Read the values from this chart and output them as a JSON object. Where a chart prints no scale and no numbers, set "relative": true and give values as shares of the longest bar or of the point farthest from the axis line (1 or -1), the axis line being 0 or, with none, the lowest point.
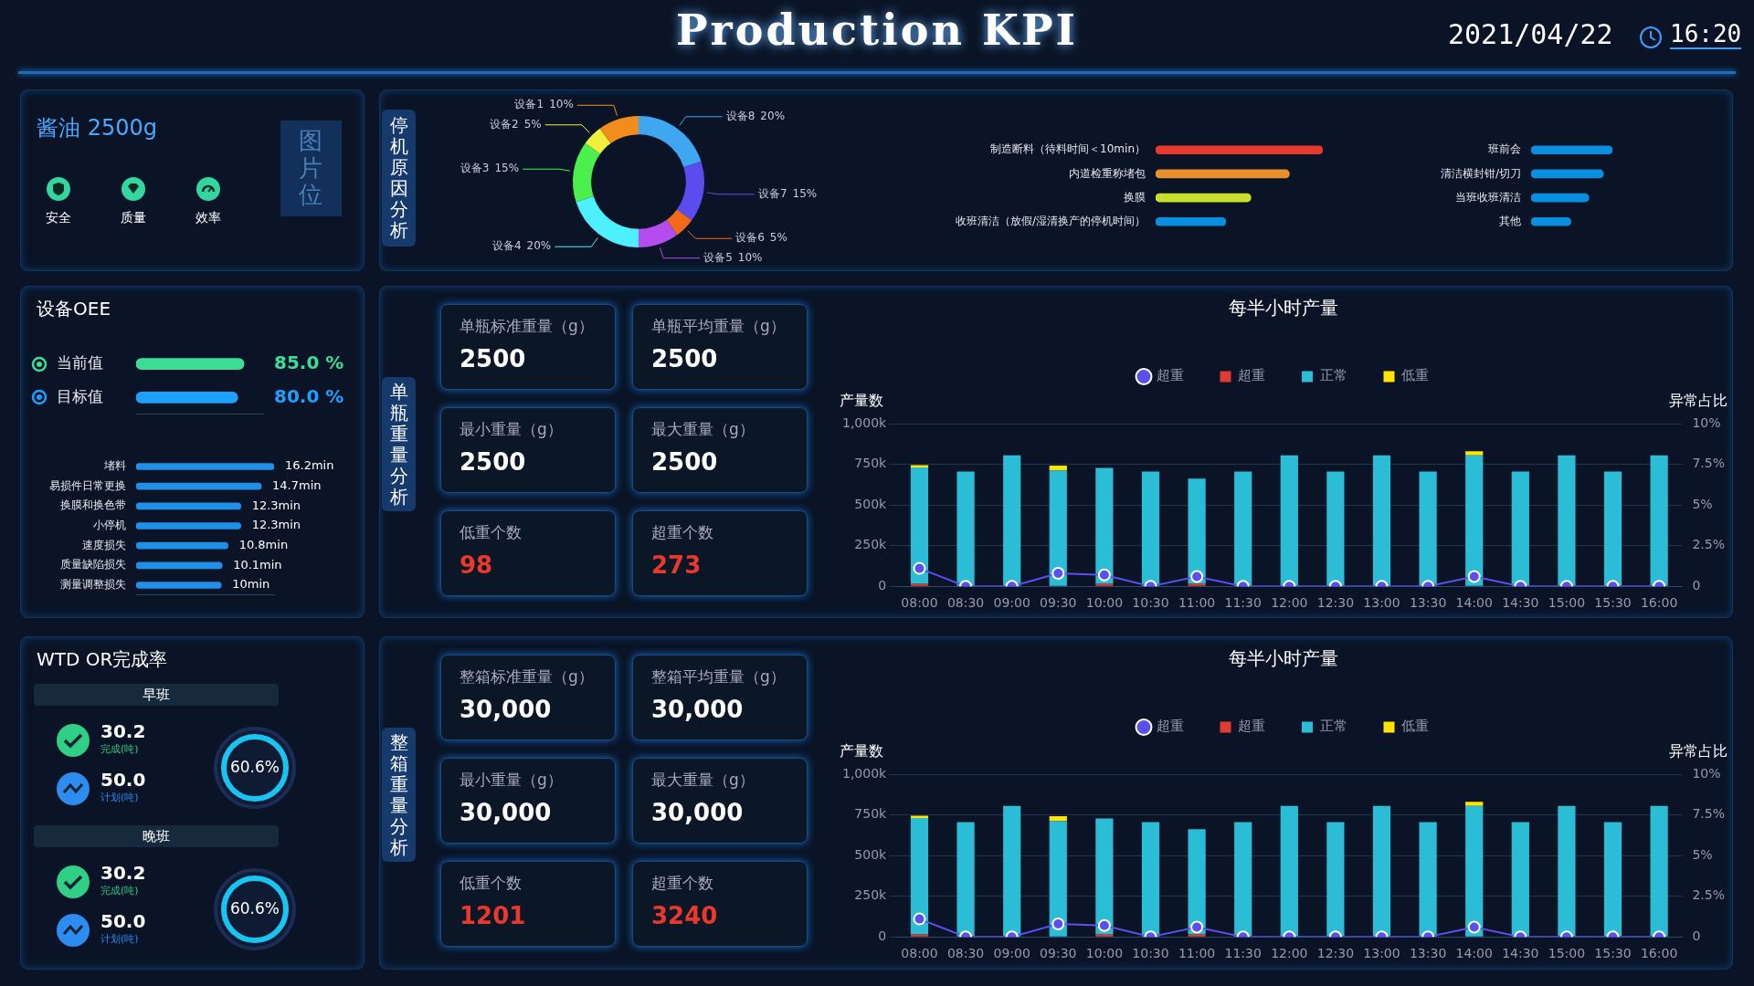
{
  "chart_data": [
    {
      "type": "other",
      "title": "Production KPI",
      "annotations": [
        "2021/04/22",
        "16:20"
      ]
    },
    {
      "type": "other",
      "title": "酱油 2500g",
      "annotations": [
        "图片位",
        "安全",
        "质量",
        "效率"
      ]
    },
    {
      "type": "donut",
      "title": "停机原因分析",
      "categories": [
        "设备8",
        "设备7",
        "设备6",
        "设备5",
        "设备4",
        "设备3",
        "设备2",
        "设备1"
      ],
      "values": [
        20,
        15,
        5,
        10,
        20,
        15,
        5,
        10
      ],
      "colors": [
        "#3fa6f2",
        "#5b4cf0",
        "#f26b1d",
        "#b44cf0",
        "#4df0ff",
        "#4cf04c",
        "#f0f03c",
        "#f28c1d"
      ],
      "value_labels": [
        "20%",
        "15%",
        "5%",
        "10%",
        "20%",
        "15%",
        "5%",
        "10%"
      ]
    },
    {
      "type": "bar",
      "orientation": "horizontal",
      "relative": true,
      "tick_labels": "y",
      "categories": [
        "制造断料（待料时间＜10min）",
        "内道检重称堵包",
        "换膜",
        "收班清洁（放假/湿清换产的停机时间）"
      ],
      "values": [
        1,
        0.8,
        0.57,
        0.42
      ],
      "colors": [
        "#e8392c",
        "#e88f2c",
        "#c8e02c",
        "#0a8ee0"
      ]
    },
    {
      "type": "bar",
      "orientation": "horizontal",
      "relative": true,
      "tick_labels": "y",
      "categories": [
        "班前会",
        "清洁横封钳/切刀",
        "当班收班清洁",
        "其他"
      ],
      "values": [
        1,
        0.89,
        0.71,
        0.49
      ],
      "color": "#0a8ee0"
    },
    {
      "type": "bar",
      "orientation": "horizontal",
      "title": "设备OEE",
      "tick_labels": "y",
      "categories": [
        "当前值",
        "目标值"
      ],
      "values": [
        85.0,
        80.0
      ],
      "value_labels": [
        "85.0 %",
        "80.0 %"
      ],
      "colors": [
        "#3ddc97",
        "#1ea0ff"
      ],
      "xlim": [
        0,
        100
      ]
    },
    {
      "type": "bar",
      "orientation": "horizontal",
      "tick_labels": "y",
      "categories": [
        "堵料",
        "易损件日常更换",
        "换膜和换色带",
        "小停机",
        "速度损失",
        "质量缺陷损失",
        "测量调整损失"
      ],
      "values": [
        16.2,
        14.7,
        12.3,
        12.3,
        10.8,
        10.1,
        10
      ],
      "value_labels": [
        "16.2min",
        "14.7min",
        "12.3min",
        "12.3min",
        "10.8min",
        "10.1min",
        "10min"
      ],
      "color": "#1e90e8",
      "xlim": [
        0,
        16.2
      ]
    },
    {
      "type": "other",
      "title": "单瓶重量分析",
      "annotations": [
        "单瓶标准重量（g）",
        "2500",
        "单瓶平均重量（g）",
        "2500",
        "最小重量（g）",
        "2500",
        "最大重量（g）",
        "2500",
        "低重个数",
        "98",
        "超重个数",
        "273"
      ]
    },
    {
      "type": "bar",
      "title": "每半小时产量",
      "ylabel": "产量数",
      "y2label": "异常占比",
      "stacked": true,
      "legend": "top",
      "grid": "y",
      "categories": [
        "08:00",
        "08:30",
        "09:00",
        "09:30",
        "10:00",
        "10:30",
        "11:00",
        "11:30",
        "12:00",
        "12:30",
        "13:00",
        "13:30",
        "14:00",
        "14:30",
        "15:00",
        "15:30",
        "16:00"
      ],
      "ylim": [
        0,
        1000000
      ],
      "yticks": [
        0,
        {
          "value": 250000,
          "label": "250k"
        },
        {
          "value": 500000,
          "label": "500k"
        },
        {
          "value": 750000,
          "label": "750k"
        },
        {
          "value": 1000000,
          "label": "1,000k"
        }
      ],
      "y2lim": [
        0,
        10
      ],
      "y2ticks": [
        0,
        {
          "value": 2.5,
          "label": "2.5%"
        },
        {
          "value": 5,
          "label": "5%"
        },
        {
          "value": 7.5,
          "label": "7.5%"
        },
        {
          "value": 10,
          "label": "10%"
        }
      ],
      "series": [
        {
          "name": "超重",
          "color": "#e03c31",
          "values": [
            15000,
            0,
            0,
            0,
            15000,
            0,
            15000,
            0,
            0,
            0,
            0,
            0,
            0,
            0,
            0,
            0,
            0
          ]
        },
        {
          "name": "正常",
          "color": "#2bbcd6",
          "values": [
            715000,
            705000,
            805000,
            712000,
            713000,
            705000,
            647000,
            705000,
            805000,
            705000,
            805000,
            705000,
            805000,
            705000,
            805000,
            705000,
            805000
          ]
        },
        {
          "name": "低重",
          "color": "#ffe400",
          "values": [
            15000,
            0,
            0,
            30000,
            0,
            0,
            0,
            0,
            0,
            0,
            0,
            0,
            25000,
            0,
            0,
            0,
            0
          ]
        },
        {
          "name": "超重",
          "type": "line",
          "axis": "y2",
          "marker": "circle",
          "color": "#5a4ff0",
          "values": [
            1.1,
            0,
            0,
            0.8,
            0.7,
            0,
            0.6,
            0,
            0,
            0,
            0,
            0,
            0.6,
            0,
            0,
            0,
            0
          ]
        }
      ]
    },
    {
      "type": "other",
      "title": "WTD OR完成率",
      "annotations": [
        "早班",
        "30.2",
        "完成(吨)",
        "50.0",
        "计划(吨)",
        "60.6%",
        "晚班",
        "30.2",
        "完成(吨)",
        "50.0",
        "计划(吨)",
        "60.6%"
      ]
    },
    {
      "type": "other",
      "title": "整箱重量分析",
      "annotations": [
        "整箱标准重量（g）",
        "30,000",
        "整箱平均重量（g）",
        "30,000",
        "最小重量（g）",
        "30,000",
        "最大重量（g）",
        "30,000",
        "低重个数",
        "1201",
        "超重个数",
        "3240"
      ]
    },
    {
      "type": "bar",
      "title": "每半小时产量",
      "ylabel": "产量数",
      "y2label": "异常占比",
      "stacked": true,
      "legend": "top",
      "grid": "y",
      "categories": [
        "08:00",
        "08:30",
        "09:00",
        "09:30",
        "10:00",
        "10:30",
        "11:00",
        "11:30",
        "12:00",
        "12:30",
        "13:00",
        "13:30",
        "14:00",
        "14:30",
        "15:00",
        "15:30",
        "16:00"
      ],
      "ylim": [
        0,
        1000000
      ],
      "yticks": [
        0,
        {
          "value": 250000,
          "label": "250k"
        },
        {
          "value": 500000,
          "label": "500k"
        },
        {
          "value": 750000,
          "label": "750k"
        },
        {
          "value": 1000000,
          "label": "1,000k"
        }
      ],
      "y2lim": [
        0,
        10
      ],
      "y2ticks": [
        0,
        {
          "value": 2.5,
          "label": "2.5%"
        },
        {
          "value": 5,
          "label": "5%"
        },
        {
          "value": 7.5,
          "label": "7.5%"
        },
        {
          "value": 10,
          "label": "10%"
        }
      ],
      "series": [
        {
          "name": "超重",
          "color": "#e03c31",
          "values": [
            15000,
            0,
            0,
            0,
            15000,
            0,
            15000,
            0,
            0,
            0,
            0,
            0,
            0,
            0,
            0,
            0,
            0
          ]
        },
        {
          "name": "正常",
          "color": "#2bbcd6",
          "values": [
            715000,
            705000,
            805000,
            712000,
            713000,
            705000,
            647000,
            705000,
            805000,
            705000,
            805000,
            705000,
            805000,
            705000,
            805000,
            705000,
            805000
          ]
        },
        {
          "name": "低重",
          "color": "#ffe400",
          "values": [
            15000,
            0,
            0,
            30000,
            0,
            0,
            0,
            0,
            0,
            0,
            0,
            0,
            25000,
            0,
            0,
            0,
            0
          ]
        },
        {
          "name": "超重",
          "type": "line",
          "axis": "y2",
          "marker": "circle",
          "color": "#5a4ff0",
          "values": [
            1.1,
            0,
            0,
            0.8,
            0.7,
            0,
            0.6,
            0,
            0,
            0,
            0,
            0,
            0.6,
            0,
            0,
            0,
            0
          ]
        }
      ]
    }
  ]
}
